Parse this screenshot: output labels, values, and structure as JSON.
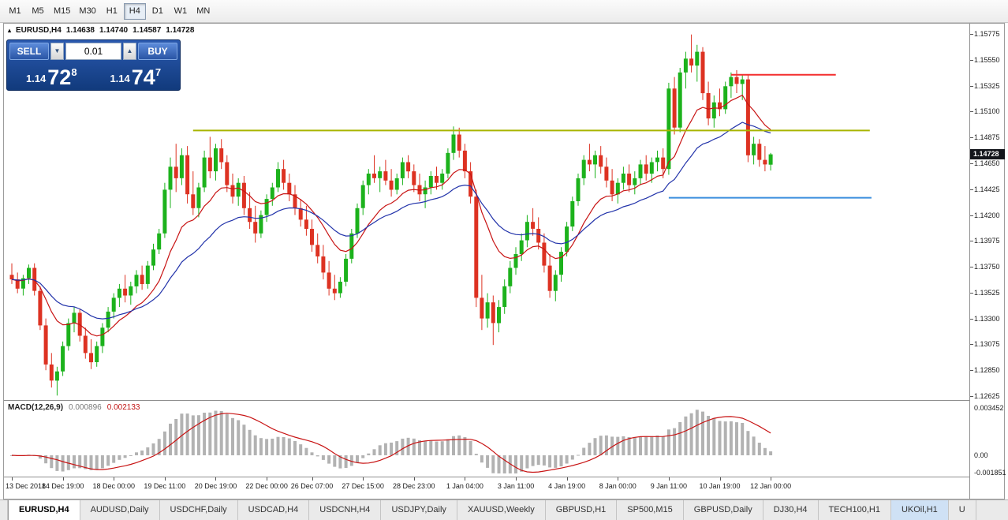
{
  "toolbar": {
    "timeframes": [
      "M1",
      "M5",
      "M15",
      "M30",
      "H1",
      "H4",
      "D1",
      "W1",
      "MN"
    ],
    "active": "H4"
  },
  "chart": {
    "title": "EURUSD,H4",
    "marker_icon": "▴",
    "ohlc": {
      "open": "1.14638",
      "high": "1.14740",
      "low": "1.14587",
      "close": "1.14728"
    },
    "price_badge": "1.14728",
    "trade_panel": {
      "sell_label": "SELL",
      "buy_label": "BUY",
      "volume": "0.01",
      "down_icon": "▼",
      "up_icon": "▲",
      "sell_price": {
        "prefix": "1.14",
        "big": "72",
        "sup": "8"
      },
      "buy_price": {
        "prefix": "1.14",
        "big": "74",
        "sup": "7"
      }
    }
  },
  "chart_data": {
    "type": "candlestick",
    "symbol": "EURUSD",
    "timeframe": "H4",
    "colors": {
      "up": "#1cb21c",
      "down": "#dd3222",
      "ma_fast": "#c81414",
      "ma_slow": "#2233aa",
      "macd_hist": "#b2b2b2",
      "macd_signal": "#c81414",
      "hline_red": "#f42e2e",
      "hline_olive": "#a8b400",
      "hline_blue": "#3b8ede"
    },
    "current_price": 1.14728,
    "y_axis": {
      "min": 1.12625,
      "max": 1.15775,
      "labels": [
        "1.15775",
        "1.15550",
        "1.15325",
        "1.15100",
        "1.14875",
        "1.14650",
        "1.14425",
        "1.14200",
        "1.13975",
        "1.13750",
        "1.13525",
        "1.13300",
        "1.13075",
        "1.12850",
        "1.12625"
      ]
    },
    "x_labels": [
      {
        "text": "13 Dec 2018",
        "i": 0
      },
      {
        "text": "14 Dec 19:00",
        "i": 9
      },
      {
        "text": "18 Dec 00:00",
        "i": 18
      },
      {
        "text": "19 Dec 11:00",
        "i": 27
      },
      {
        "text": "20 Dec 19:00",
        "i": 36
      },
      {
        "text": "22 Dec 00:00",
        "i": 45
      },
      {
        "text": "26 Dec 07:00",
        "i": 53
      },
      {
        "text": "27 Dec 15:00",
        "i": 62
      },
      {
        "text": "28 Dec 23:00",
        "i": 71
      },
      {
        "text": "1 Jan 04:00",
        "i": 80
      },
      {
        "text": "3 Jan 11:00",
        "i": 89
      },
      {
        "text": "4 Jan 19:00",
        "i": 98
      },
      {
        "text": "8 Jan 00:00",
        "i": 107
      },
      {
        "text": "9 Jan 11:00",
        "i": 116
      },
      {
        "text": "10 Jan 19:00",
        "i": 125
      },
      {
        "text": "12 Jan 00:00",
        "i": 134
      }
    ],
    "overlays": {
      "ma_fast": {
        "type": "EMA",
        "period": 12
      },
      "ma_slow": {
        "type": "EMA",
        "period": 26
      },
      "hlines": [
        {
          "name": "resistance-line-red",
          "price": 1.1542,
          "from_index": 127,
          "to_index": 145.5,
          "colorKey": "hline_red",
          "width": 2
        },
        {
          "name": "level-line-olive",
          "price": 1.14935,
          "from_index": 32,
          "to_index": 151.5,
          "colorKey": "hline_olive",
          "width": 2
        },
        {
          "name": "support-line-blue",
          "price": 1.1435,
          "from_index": 116,
          "to_index": 151.8,
          "colorKey": "hline_blue",
          "width": 2
        }
      ]
    },
    "indicator": {
      "label": "MACD(12,26,9)",
      "value_main": "0.000896",
      "value_signal": "0.002133",
      "y_labels": [
        {
          "text": "0.003452",
          "value": 0.003452
        },
        {
          "text": "0.00",
          "value": 0
        },
        {
          "text": "-0.001851",
          "value": -0.001851
        }
      ]
    },
    "candles": [
      [
        1.1368,
        1.1378,
        1.136,
        1.1364
      ],
      [
        1.1364,
        1.137,
        1.1352,
        1.1356
      ],
      [
        1.1356,
        1.1368,
        1.135,
        1.1365
      ],
      [
        1.1365,
        1.1377,
        1.136,
        1.1374
      ],
      [
        1.1374,
        1.1378,
        1.135,
        1.1354
      ],
      [
        1.1354,
        1.1358,
        1.132,
        1.1324
      ],
      [
        1.1324,
        1.133,
        1.1285,
        1.129
      ],
      [
        1.129,
        1.13,
        1.127,
        1.1276
      ],
      [
        1.1276,
        1.1288,
        1.1263,
        1.1284
      ],
      [
        1.1284,
        1.131,
        1.128,
        1.1306
      ],
      [
        1.1306,
        1.133,
        1.1302,
        1.1326
      ],
      [
        1.1326,
        1.134,
        1.1318,
        1.1335
      ],
      [
        1.1335,
        1.1338,
        1.131,
        1.1315
      ],
      [
        1.1315,
        1.1322,
        1.1295,
        1.13
      ],
      [
        1.13,
        1.1312,
        1.1286,
        1.1292
      ],
      [
        1.1292,
        1.131,
        1.1288,
        1.1306
      ],
      [
        1.1306,
        1.1326,
        1.13,
        1.1322
      ],
      [
        1.1322,
        1.134,
        1.1318,
        1.1336
      ],
      [
        1.1336,
        1.1352,
        1.133,
        1.1348
      ],
      [
        1.1348,
        1.136,
        1.134,
        1.1356
      ],
      [
        1.1356,
        1.1368,
        1.1344,
        1.135
      ],
      [
        1.135,
        1.1362,
        1.1342,
        1.1358
      ],
      [
        1.1358,
        1.1372,
        1.1352,
        1.1368
      ],
      [
        1.1368,
        1.1376,
        1.1355,
        1.136
      ],
      [
        1.136,
        1.138,
        1.1356,
        1.1376
      ],
      [
        1.1376,
        1.1395,
        1.1372,
        1.139
      ],
      [
        1.139,
        1.1408,
        1.1386,
        1.1404
      ],
      [
        1.1404,
        1.1448,
        1.14,
        1.1442
      ],
      [
        1.1442,
        1.147,
        1.1426,
        1.1462
      ],
      [
        1.1462,
        1.1482,
        1.144,
        1.1452
      ],
      [
        1.1452,
        1.1478,
        1.1446,
        1.1472
      ],
      [
        1.1472,
        1.148,
        1.143,
        1.1438
      ],
      [
        1.1438,
        1.1458,
        1.142,
        1.1426
      ],
      [
        1.1426,
        1.1448,
        1.1418,
        1.1444
      ],
      [
        1.1444,
        1.1476,
        1.144,
        1.147
      ],
      [
        1.147,
        1.1488,
        1.1452,
        1.1458
      ],
      [
        1.1458,
        1.1482,
        1.145,
        1.1478
      ],
      [
        1.1478,
        1.1486,
        1.146,
        1.1466
      ],
      [
        1.1466,
        1.1472,
        1.144,
        1.1446
      ],
      [
        1.1446,
        1.1456,
        1.143,
        1.1436
      ],
      [
        1.1436,
        1.1452,
        1.1428,
        1.1448
      ],
      [
        1.1448,
        1.1454,
        1.142,
        1.1426
      ],
      [
        1.1426,
        1.144,
        1.1408,
        1.1414
      ],
      [
        1.1414,
        1.1428,
        1.1396,
        1.1404
      ],
      [
        1.1404,
        1.1424,
        1.14,
        1.142
      ],
      [
        1.142,
        1.1438,
        1.1414,
        1.1434
      ],
      [
        1.1434,
        1.1448,
        1.1428,
        1.1444
      ],
      [
        1.1444,
        1.1466,
        1.144,
        1.146
      ],
      [
        1.146,
        1.1468,
        1.1442,
        1.1448
      ],
      [
        1.1448,
        1.1456,
        1.1432,
        1.1438
      ],
      [
        1.1438,
        1.1446,
        1.142,
        1.1426
      ],
      [
        1.1426,
        1.1434,
        1.141,
        1.1416
      ],
      [
        1.1416,
        1.1428,
        1.1402,
        1.1408
      ],
      [
        1.1408,
        1.1416,
        1.1388,
        1.1394
      ],
      [
        1.1394,
        1.1404,
        1.1378,
        1.1384
      ],
      [
        1.1384,
        1.1394,
        1.1364,
        1.137
      ],
      [
        1.137,
        1.138,
        1.135,
        1.1356
      ],
      [
        1.1356,
        1.1368,
        1.1346,
        1.1352
      ],
      [
        1.1352,
        1.1366,
        1.1348,
        1.1362
      ],
      [
        1.1362,
        1.1386,
        1.1358,
        1.1382
      ],
      [
        1.1382,
        1.1408,
        1.1378,
        1.1404
      ],
      [
        1.1404,
        1.143,
        1.14,
        1.1426
      ],
      [
        1.1426,
        1.145,
        1.142,
        1.1446
      ],
      [
        1.1446,
        1.146,
        1.1438,
        1.1456
      ],
      [
        1.1456,
        1.1472,
        1.1448,
        1.1452
      ],
      [
        1.1452,
        1.1462,
        1.144,
        1.1458
      ],
      [
        1.1458,
        1.1468,
        1.1446,
        1.145
      ],
      [
        1.145,
        1.146,
        1.1436,
        1.1442
      ],
      [
        1.1442,
        1.1456,
        1.1438,
        1.1452
      ],
      [
        1.1452,
        1.147,
        1.1446,
        1.1466
      ],
      [
        1.1466,
        1.1472,
        1.1452,
        1.1458
      ],
      [
        1.1458,
        1.1464,
        1.144,
        1.1446
      ],
      [
        1.1446,
        1.1456,
        1.1432,
        1.1438
      ],
      [
        1.1438,
        1.145,
        1.1426,
        1.1444
      ],
      [
        1.1444,
        1.1458,
        1.1438,
        1.1454
      ],
      [
        1.1454,
        1.1462,
        1.1442,
        1.1448
      ],
      [
        1.1448,
        1.146,
        1.1442,
        1.1456
      ],
      [
        1.1456,
        1.1478,
        1.1452,
        1.1474
      ],
      [
        1.1474,
        1.1497,
        1.1468,
        1.149
      ],
      [
        1.149,
        1.1496,
        1.147,
        1.1476
      ],
      [
        1.1476,
        1.1482,
        1.1452,
        1.1458
      ],
      [
        1.1458,
        1.1466,
        1.143,
        1.1436
      ],
      [
        1.1436,
        1.1442,
        1.134,
        1.1348
      ],
      [
        1.1348,
        1.1368,
        1.132,
        1.133
      ],
      [
        1.133,
        1.1352,
        1.1322,
        1.1344
      ],
      [
        1.1344,
        1.135,
        1.1307,
        1.1326
      ],
      [
        1.1326,
        1.1346,
        1.1318,
        1.134
      ],
      [
        1.134,
        1.1364,
        1.1334,
        1.1358
      ],
      [
        1.1358,
        1.138,
        1.1352,
        1.1374
      ],
      [
        1.1374,
        1.1392,
        1.1368,
        1.1386
      ],
      [
        1.1386,
        1.1404,
        1.138,
        1.1398
      ],
      [
        1.1398,
        1.142,
        1.1392,
        1.1414
      ],
      [
        1.1414,
        1.1426,
        1.1402,
        1.1408
      ],
      [
        1.1408,
        1.1418,
        1.139,
        1.1396
      ],
      [
        1.1396,
        1.1404,
        1.137,
        1.1376
      ],
      [
        1.1376,
        1.1386,
        1.1348,
        1.1354
      ],
      [
        1.1354,
        1.1372,
        1.1345,
        1.1368
      ],
      [
        1.1368,
        1.1392,
        1.1362,
        1.1388
      ],
      [
        1.1388,
        1.1414,
        1.1384,
        1.141
      ],
      [
        1.141,
        1.1436,
        1.1406,
        1.1432
      ],
      [
        1.1432,
        1.1456,
        1.1428,
        1.1452
      ],
      [
        1.1452,
        1.1472,
        1.1446,
        1.1468
      ],
      [
        1.1468,
        1.1482,
        1.1458,
        1.1464
      ],
      [
        1.1464,
        1.1476,
        1.1452,
        1.1472
      ],
      [
        1.1472,
        1.148,
        1.1456,
        1.1462
      ],
      [
        1.1462,
        1.147,
        1.1444,
        1.145
      ],
      [
        1.145,
        1.146,
        1.1432,
        1.1438
      ],
      [
        1.1438,
        1.1452,
        1.143,
        1.1448
      ],
      [
        1.1448,
        1.1462,
        1.1442,
        1.1456
      ],
      [
        1.1456,
        1.1464,
        1.144,
        1.1446
      ],
      [
        1.1446,
        1.1458,
        1.1438,
        1.1452
      ],
      [
        1.1452,
        1.1468,
        1.1446,
        1.1464
      ],
      [
        1.1464,
        1.1472,
        1.145,
        1.1456
      ],
      [
        1.1456,
        1.147,
        1.1448,
        1.1466
      ],
      [
        1.1466,
        1.1476,
        1.1458,
        1.147
      ],
      [
        1.147,
        1.1478,
        1.1452,
        1.146
      ],
      [
        1.146,
        1.1535,
        1.1455,
        1.153
      ],
      [
        1.153,
        1.154,
        1.149,
        1.1496
      ],
      [
        1.1496,
        1.1548,
        1.1492,
        1.1544
      ],
      [
        1.1544,
        1.1562,
        1.153,
        1.1556
      ],
      [
        1.1556,
        1.1577,
        1.1544,
        1.155
      ],
      [
        1.155,
        1.1568,
        1.1536,
        1.1562
      ],
      [
        1.1562,
        1.1566,
        1.152,
        1.1526
      ],
      [
        1.1526,
        1.1536,
        1.1498,
        1.1504
      ],
      [
        1.1504,
        1.1524,
        1.1496,
        1.1518
      ],
      [
        1.1518,
        1.153,
        1.1506,
        1.1512
      ],
      [
        1.1512,
        1.1536,
        1.1508,
        1.1532
      ],
      [
        1.1532,
        1.1544,
        1.1522,
        1.154
      ],
      [
        1.154,
        1.1546,
        1.1526,
        1.1534
      ],
      [
        1.1534,
        1.1542,
        1.152,
        1.1538
      ],
      [
        1.1538,
        1.1542,
        1.1466,
        1.1472
      ],
      [
        1.1472,
        1.1488,
        1.1464,
        1.1482
      ],
      [
        1.1482,
        1.1486,
        1.1462,
        1.1468
      ],
      [
        1.1468,
        1.148,
        1.1458,
        1.1464
      ],
      [
        1.14638,
        1.1474,
        1.14587,
        1.14728
      ]
    ]
  },
  "tabs": {
    "items": [
      {
        "label": "EURUSD,H4",
        "active": true
      },
      {
        "label": "AUDUSD,Daily"
      },
      {
        "label": "USDCHF,Daily"
      },
      {
        "label": "USDCAD,H4"
      },
      {
        "label": "USDCNH,H4"
      },
      {
        "label": "USDJPY,Daily"
      },
      {
        "label": "XAUUSD,Weekly"
      },
      {
        "label": "GBPUSD,H1"
      },
      {
        "label": "SP500,M15"
      },
      {
        "label": "GBPUSD,Daily"
      },
      {
        "label": "DJ30,H4"
      },
      {
        "label": "TECH100,H1"
      },
      {
        "label": "UKOil,H1",
        "highlighted": true
      },
      {
        "label": "U"
      }
    ]
  }
}
